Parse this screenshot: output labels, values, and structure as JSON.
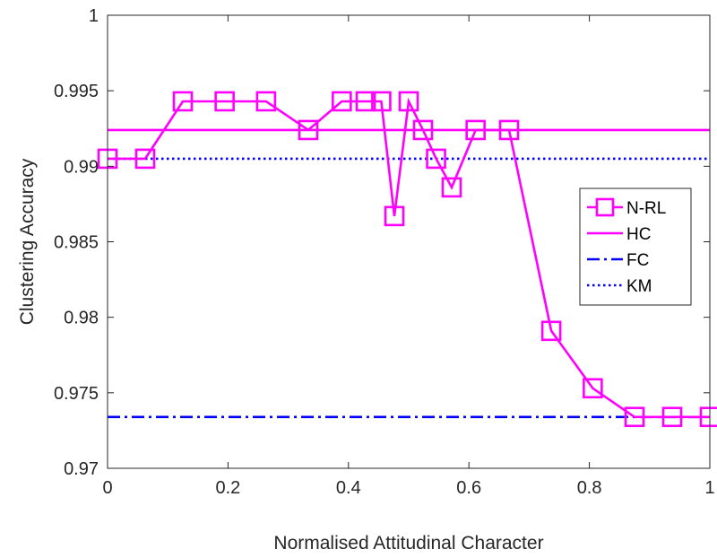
{
  "chart_data": {
    "type": "line",
    "xlabel": "Normalised Attitudinal Character",
    "ylabel": "Clustering Accuracy",
    "xlim": [
      0,
      1
    ],
    "ylim": [
      0.97,
      1
    ],
    "x_ticks": [
      0,
      0.2,
      0.4,
      0.6,
      0.8,
      1
    ],
    "x_tick_labels": [
      "0",
      "0.2",
      "0.4",
      "0.6",
      "0.8",
      "1"
    ],
    "y_ticks": [
      0.97,
      0.975,
      0.98,
      0.985,
      0.99,
      0.995,
      1
    ],
    "y_tick_labels": [
      "0.97",
      "0.975",
      "0.98",
      "0.985",
      "0.99",
      "0.995",
      "1"
    ],
    "grid": false,
    "legend_position": "center-right",
    "series": [
      {
        "name": "N-RL",
        "style": "solid-line-square-markers",
        "color": "#ff00ff",
        "x": [
          0,
          0.0625,
          0.125,
          0.1944,
          0.2632,
          0.3333,
          0.3889,
          0.4286,
          0.4545,
          0.4762,
          0.5,
          0.5238,
          0.5455,
          0.5714,
          0.6111,
          0.6667,
          0.7368,
          0.8056,
          0.875,
          0.9375,
          1
        ],
        "values": [
          0.9905,
          0.9905,
          0.9943,
          0.9943,
          0.9943,
          0.9924,
          0.9943,
          0.9943,
          0.9943,
          0.9867,
          0.9943,
          0.9924,
          0.9905,
          0.9886,
          0.9924,
          0.9924,
          0.9791,
          0.9753,
          0.9734,
          0.9734,
          0.9734
        ]
      },
      {
        "name": "HC",
        "style": "solid",
        "color": "#ff00ff",
        "value": 0.9924
      },
      {
        "name": "FC",
        "style": "dash-dot",
        "color": "#0000ff",
        "value": 0.9734
      },
      {
        "name": "KM",
        "style": "dotted",
        "color": "#0000ff",
        "value": 0.9905
      }
    ]
  }
}
